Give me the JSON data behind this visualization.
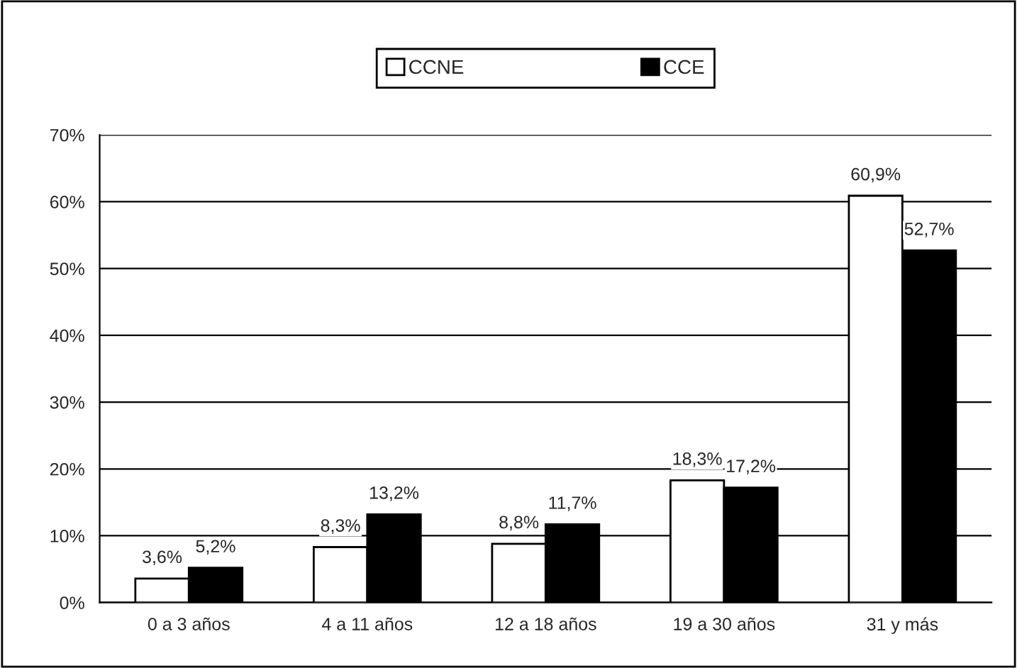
{
  "chart_data": {
    "type": "bar",
    "categories": [
      "0 a 3 años",
      "4 a 11 años",
      "12 a 18 años",
      "19 a 30 años",
      "31 y más"
    ],
    "series": [
      {
        "name": "CCNE",
        "color": "#ffffff",
        "values": [
          3.6,
          8.3,
          8.8,
          18.3,
          60.9
        ],
        "value_labels": [
          "3,6%",
          "8,3%",
          "8,8%",
          "18,3%",
          "60,9%"
        ]
      },
      {
        "name": "CCE",
        "color": "#000000",
        "values": [
          5.2,
          13.2,
          11.7,
          17.2,
          52.7
        ],
        "value_labels": [
          "5,2%",
          "13,2%",
          "11,7%",
          "17,2%",
          "52,7%"
        ]
      }
    ],
    "ylim": [
      0,
      70
    ],
    "yticks": [
      {
        "value": 0,
        "label": "0%"
      },
      {
        "value": 10,
        "label": "10%"
      },
      {
        "value": 20,
        "label": "20%"
      },
      {
        "value": 30,
        "label": "30%"
      },
      {
        "value": 40,
        "label": "40%"
      },
      {
        "value": 50,
        "label": "50%"
      },
      {
        "value": 60,
        "label": "60%"
      },
      {
        "value": 70,
        "label": "70%"
      }
    ],
    "grid": "y",
    "legend": "top"
  }
}
